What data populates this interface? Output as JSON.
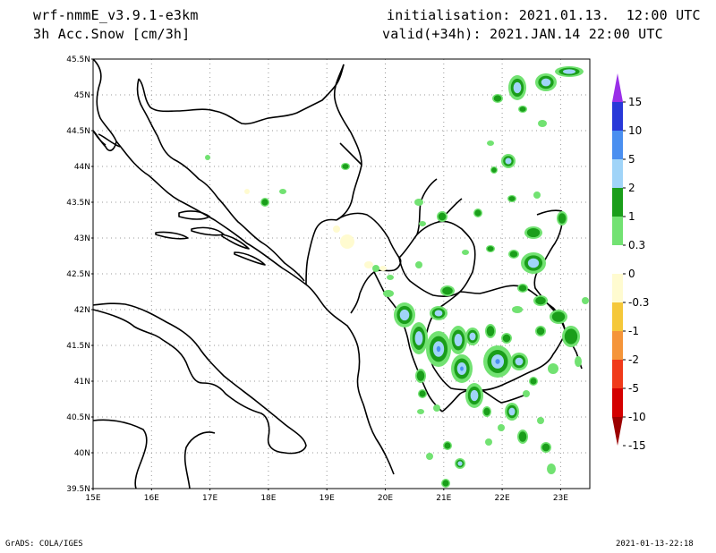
{
  "header": {
    "model": "wrf-nmmE_v3.9.1-e3km",
    "field": "3h Acc.Snow [cm/3h]",
    "initialisation": "initialisation: 2021.01.13.  12:00 UTC",
    "valid": "valid(+34h): 2021.JAN.14 22:00 UTC"
  },
  "footer": {
    "credit": "GrADS: COLA/IGES",
    "timestamp": "2021-01-13-22:18"
  },
  "map": {
    "lat_labels": [
      "45.5N",
      "45N",
      "44.5N",
      "44N",
      "43.5N",
      "43N",
      "42.5N",
      "42N",
      "41.5N",
      "41N",
      "40.5N",
      "40N",
      "39.5N"
    ],
    "lon_labels": [
      "15E",
      "16E",
      "17E",
      "18E",
      "19E",
      "20E",
      "21E",
      "22E",
      "23E"
    ],
    "lat_range": [
      39.5,
      45.5
    ],
    "lon_range": [
      15,
      23.3
    ],
    "grid": "dotted",
    "colors": {
      "border": "#000000",
      "grid": "#999999"
    }
  },
  "colorbar": {
    "labels": [
      "15",
      "10",
      "5",
      "2",
      "1",
      "0.3",
      "0",
      "-0.3",
      "-1",
      "-2",
      "-5",
      "-10",
      "-15"
    ],
    "colors": [
      "#9a2fe8",
      "#2838d8",
      "#4a8ff0",
      "#a0d4f8",
      "#1a9e1a",
      "#72e272",
      "#ffffff",
      "#fffbd0",
      "#f5c83a",
      "#f5953a",
      "#f03a1a",
      "#d40000",
      "#9c0000"
    ]
  },
  "legend_entries": {
    "top": "15",
    "bottom": "-15"
  }
}
